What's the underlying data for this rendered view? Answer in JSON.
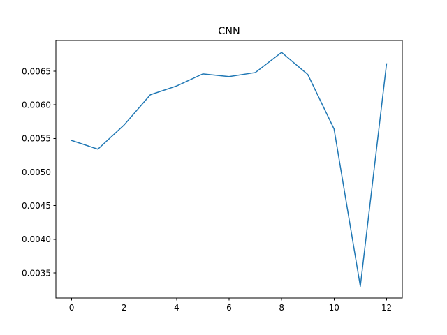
{
  "chart_data": {
    "type": "line",
    "title": "CNN",
    "xlabel": "",
    "ylabel": "",
    "x": [
      0,
      1,
      2,
      3,
      4,
      5,
      6,
      7,
      8,
      9,
      10,
      11,
      12
    ],
    "series": [
      {
        "values": [
          0.00547,
          0.00534,
          0.0057,
          0.00615,
          0.00628,
          0.00646,
          0.00642,
          0.00648,
          0.00678,
          0.00645,
          0.00564,
          0.0033,
          0.00661
        ],
        "color": "#1f77b4"
      }
    ],
    "xlim": [
      -0.6,
      12.6
    ],
    "ylim": [
      0.003126,
      0.006957
    ],
    "xticks": [
      0,
      2,
      4,
      6,
      8,
      10,
      12
    ],
    "xtick_labels": [
      "0",
      "2",
      "4",
      "6",
      "8",
      "10",
      "12"
    ],
    "yticks": [
      0.0035,
      0.004,
      0.0045,
      0.005,
      0.0055,
      0.006,
      0.0065
    ],
    "ytick_labels": [
      "0.0035",
      "0.0040",
      "0.0045",
      "0.0050",
      "0.0055",
      "0.0060",
      "0.0065"
    ],
    "grid": false,
    "legend": "none"
  }
}
